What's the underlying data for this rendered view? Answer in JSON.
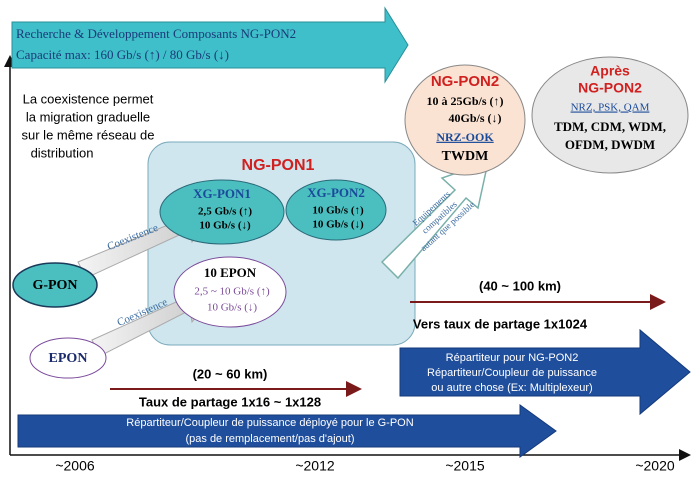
{
  "top_arrow": {
    "line1": "Recherche & Développement Composants NG-PON2",
    "line2": "Capacité max: 160 Gb/s (↑) / 80 Gb/s (↓)"
  },
  "note": [
    "La coexistence permet",
    "la migration graduelle",
    "sur le même réseau de",
    "distribution"
  ],
  "ngpon1": {
    "title": "NG-PON1",
    "xgpon1": [
      "XG-PON1",
      "2,5 Gb/s  (↑)",
      "10 Gb/s   (↓)"
    ],
    "xgpon2": [
      "XG-PON2",
      "10 Gb/s  (↑)",
      "10 Gb/s  (↓)"
    ],
    "epon10": [
      "10 EPON",
      "2,5 ~ 10 Gb/s  (↑)",
      "10 Gb/s  (↓)"
    ]
  },
  "gpon": "G-PON",
  "epon": "EPON",
  "coexistence": [
    "Coexistence",
    "Coexistence"
  ],
  "ngpon2": [
    "NG-PON2",
    "10 à 25Gb/s (↑)",
    "40Gb/s (↓)",
    "NRZ-OOK",
    "TWDM"
  ],
  "apres": [
    "Après",
    "NG-PON2",
    "NRZ, PSK, QAM",
    "TDM, CDM, WDM,",
    "OFDM, DWDM"
  ],
  "equipements": [
    "Equipements",
    "compatibles",
    "autant que possible"
  ],
  "range2": "(40 ~ 100 km)",
  "split2": "Vers taux de partage 1x1024",
  "splitter2": [
    "Répartiteur pour NG-PON2",
    "Répartiteur/Coupleur de puissance",
    "ou autre chose (Ex: Multiplexeur)"
  ],
  "range1": "(20 ~ 60 km)",
  "split1": "Taux de partage  1x16 ~ 1x128",
  "splitter1": [
    "Répartiteur/Coupleur de puissance déployé pour le G-PON",
    "(pas de remplacement/pas d'ajout)"
  ],
  "axis": [
    "~2006",
    "~2012",
    "~2015",
    "~2020"
  ]
}
